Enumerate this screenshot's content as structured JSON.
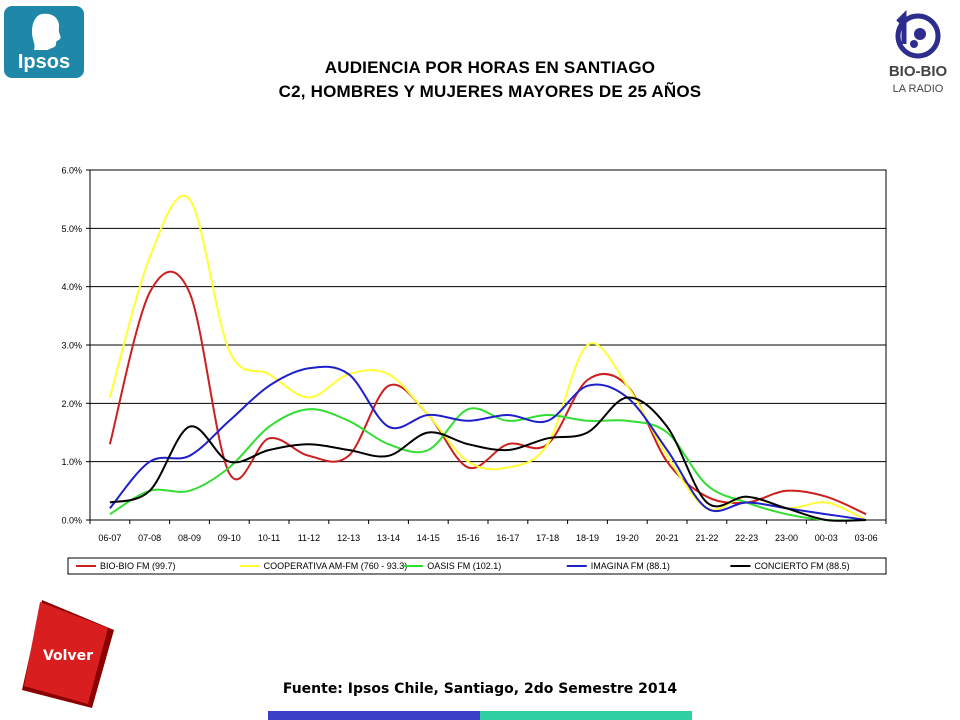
{
  "header": {
    "title_line1": "AUDIENCIA POR HORAS EN SANTIAGO",
    "title_line2": "C2, HOMBRES Y MUJERES MAYORES DE 25 AÑOS"
  },
  "logos": {
    "left_text": "Ipsos",
    "right_text": "BIO-BIO",
    "right_subtext": "LA RADIO"
  },
  "nav": {
    "back_label": "Volver"
  },
  "footer": {
    "source": "Fuente: Ipsos Chile, Santiago, 2do Semestre 2014"
  },
  "colors": {
    "ipsos": "#1F88A8",
    "biobio": "#2D2D8F",
    "volver": "#D81E1E",
    "bar_left": "#3B3FC8",
    "bar_right": "#2ECFA0"
  },
  "chart_data": {
    "type": "line",
    "title": "",
    "xlabel": "",
    "ylabel": "",
    "ylim": [
      0,
      6
    ],
    "y_ticks": [
      "0.0%",
      "1.0%",
      "2.0%",
      "3.0%",
      "4.0%",
      "5.0%",
      "6.0%"
    ],
    "grid": true,
    "legend_position": "bottom",
    "categories": [
      "06-07",
      "07-08",
      "08-09",
      "09-10",
      "10-11",
      "11-12",
      "12-13",
      "13-14",
      "14-15",
      "15-16",
      "16-17",
      "17-18",
      "18-19",
      "19-20",
      "20-21",
      "21-22",
      "22-23",
      "23-00",
      "00-03",
      "03-06"
    ],
    "series": [
      {
        "name": "BIO-BIO FM (99.7)",
        "color": "#CC1F1F",
        "values": [
          1.3,
          3.9,
          3.9,
          0.8,
          1.4,
          1.1,
          1.1,
          2.3,
          1.8,
          0.9,
          1.3,
          1.3,
          2.4,
          2.3,
          1.0,
          0.4,
          0.3,
          0.5,
          0.4,
          0.1
        ]
      },
      {
        "name": "COOPERATIVA AM-FM (760 - 93.3)",
        "color": "#FFFF33",
        "values": [
          2.1,
          4.5,
          5.5,
          2.9,
          2.5,
          2.1,
          2.5,
          2.5,
          1.8,
          1.0,
          0.9,
          1.3,
          3.0,
          2.3,
          1.1,
          0.2,
          0.4,
          0.2,
          0.3,
          0.0
        ]
      },
      {
        "name": "OASIS FM (102.1)",
        "color": "#33DD33",
        "values": [
          0.1,
          0.5,
          0.5,
          0.9,
          1.6,
          1.9,
          1.7,
          1.3,
          1.2,
          1.9,
          1.7,
          1.8,
          1.7,
          1.7,
          1.5,
          0.6,
          0.3,
          0.1,
          0.0,
          0.0
        ]
      },
      {
        "name": "IMAGINA FM (88.1)",
        "color": "#1F1FCC",
        "values": [
          0.2,
          1.0,
          1.1,
          1.7,
          2.3,
          2.6,
          2.5,
          1.6,
          1.8,
          1.7,
          1.8,
          1.7,
          2.3,
          2.1,
          1.2,
          0.2,
          0.3,
          0.2,
          0.1,
          0.0
        ]
      },
      {
        "name": "CONCIERTO FM (88.5)",
        "color": "#000000",
        "values": [
          0.3,
          0.5,
          1.6,
          1.0,
          1.2,
          1.3,
          1.2,
          1.1,
          1.5,
          1.3,
          1.2,
          1.4,
          1.5,
          2.1,
          1.6,
          0.3,
          0.4,
          0.2,
          0.0,
          0.0
        ]
      }
    ]
  }
}
